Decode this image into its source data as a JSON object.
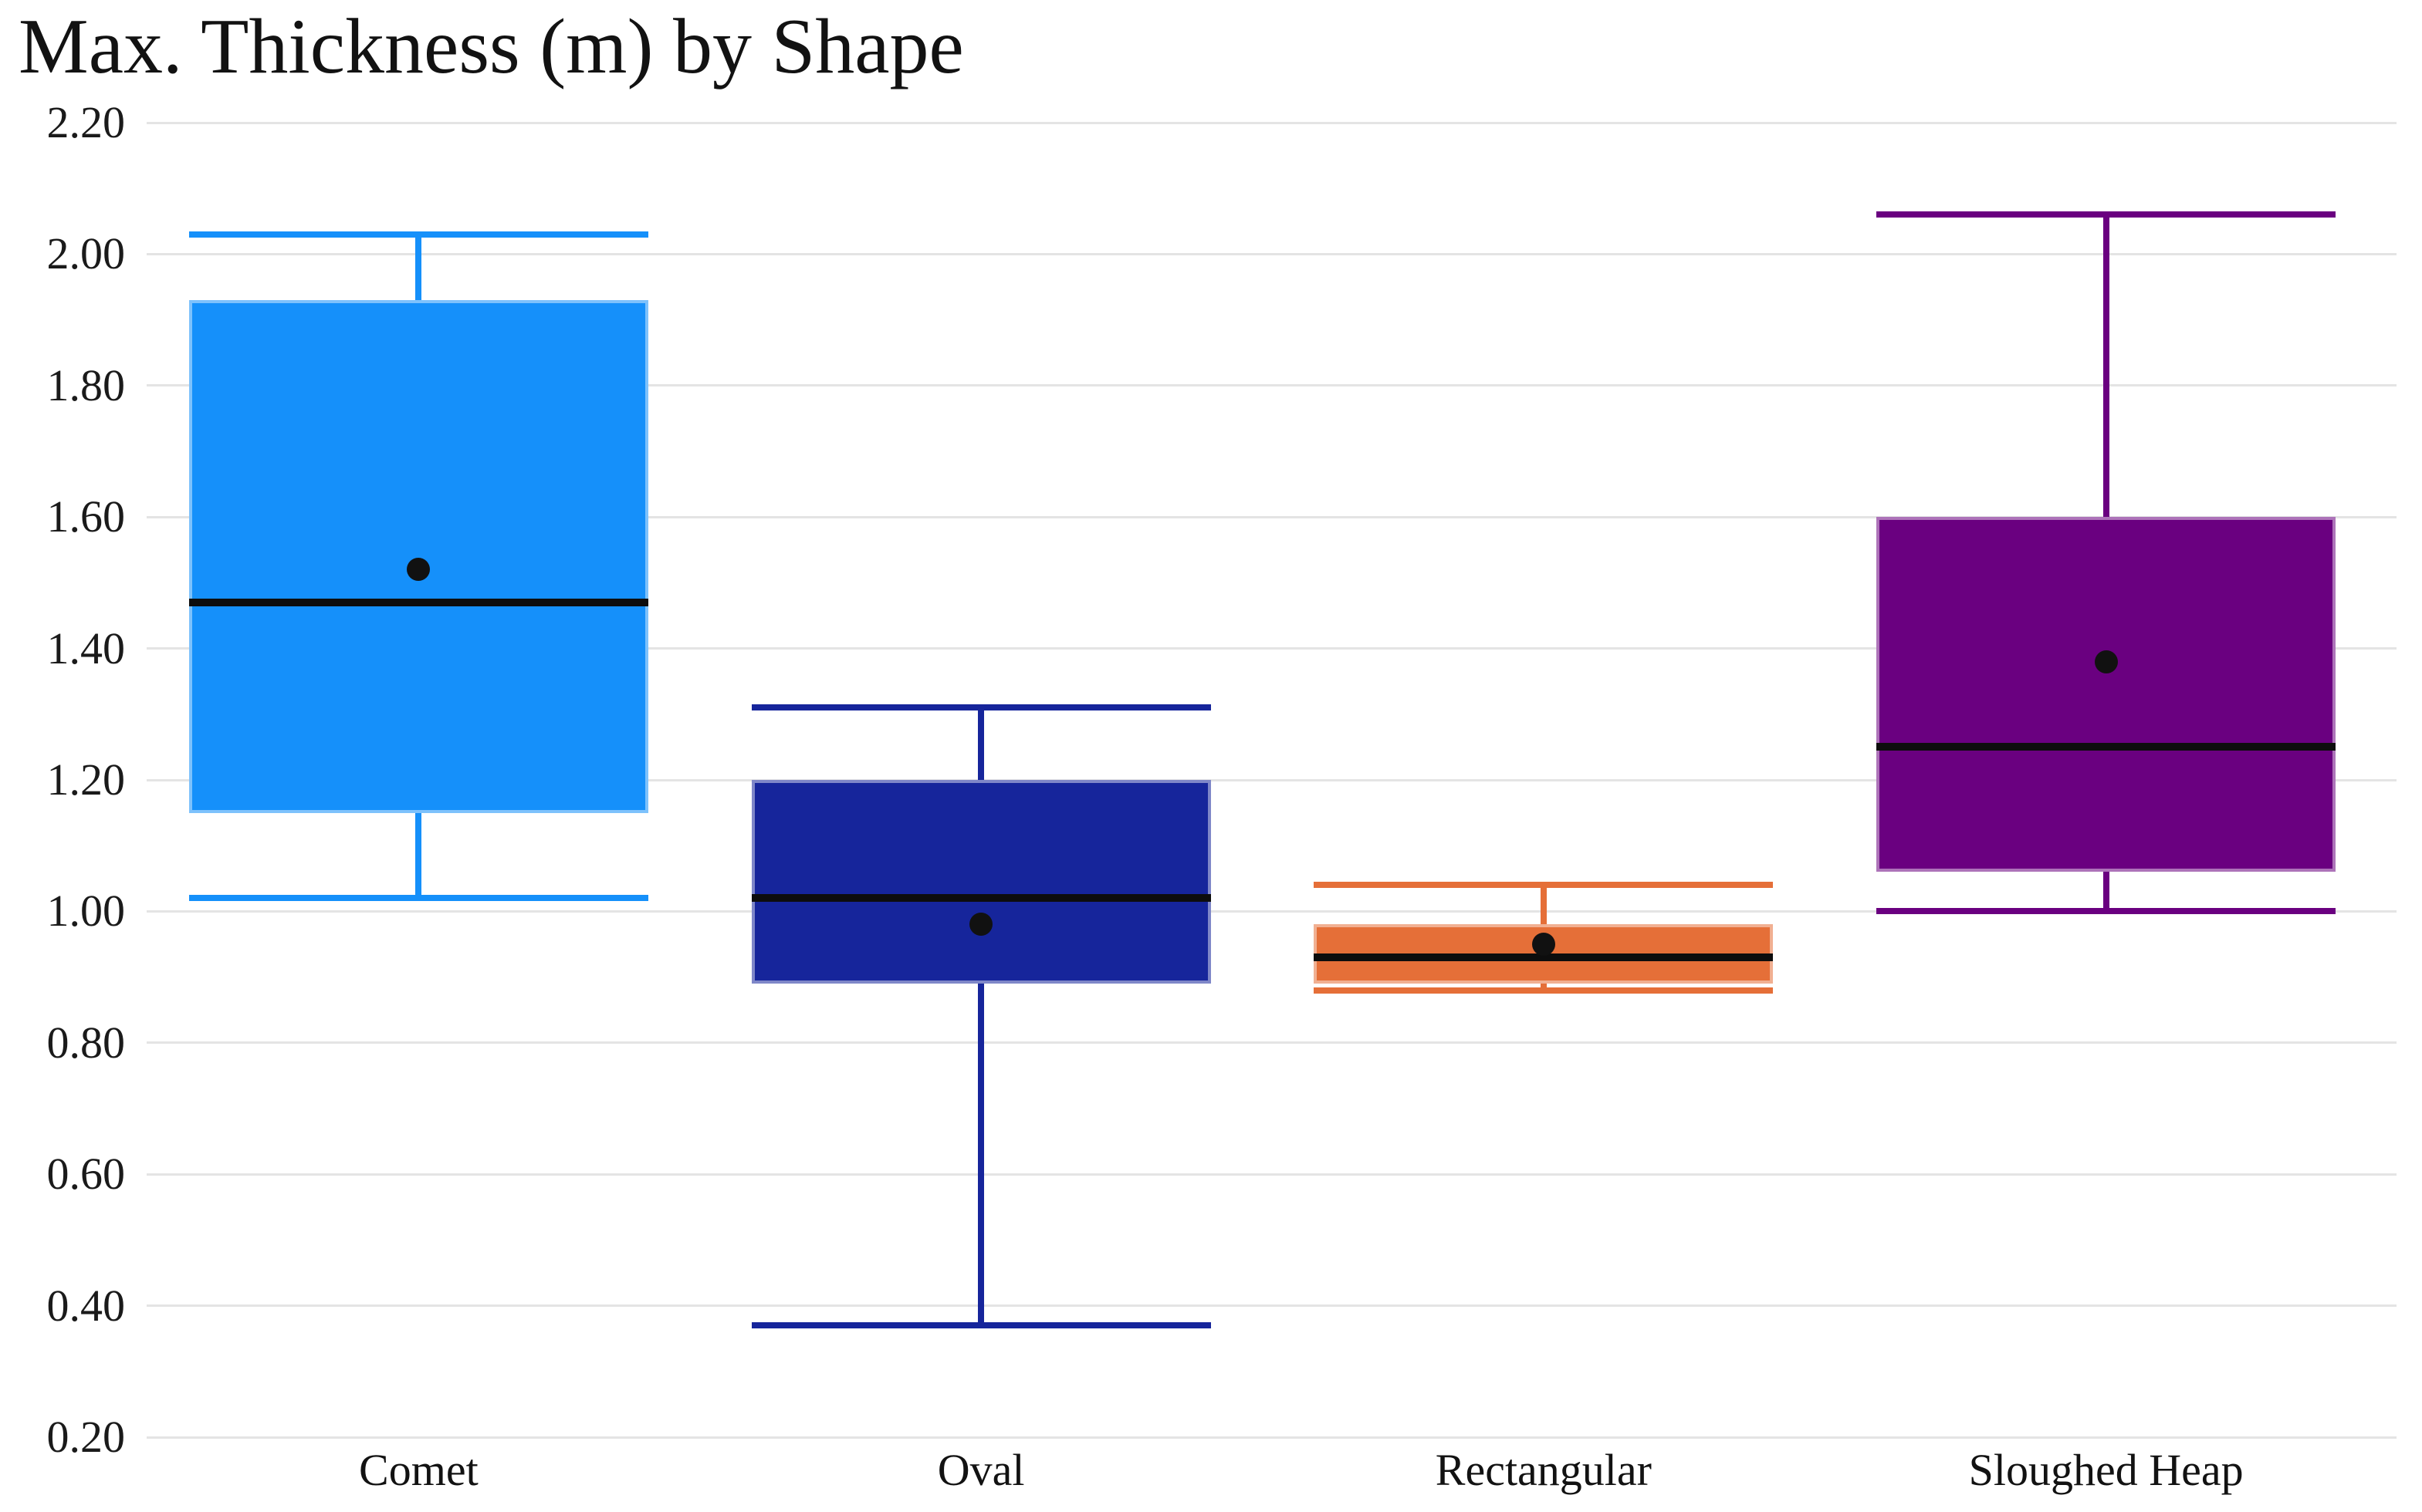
{
  "page": {
    "background": "#FFFFFF"
  },
  "chart_data": {
    "type": "box",
    "title": "Max. Thickness (m) by Shape",
    "xlabel": "",
    "ylabel": "",
    "categories": [
      "Comet",
      "Oval",
      "Rectangular",
      "Sloughed Heap"
    ],
    "series": [
      {
        "name": "Comet",
        "color": "#1590FA",
        "whisker_low": 1.02,
        "q1": 1.15,
        "median": 1.47,
        "mean": 1.52,
        "q3": 1.93,
        "whisker_high": 2.03
      },
      {
        "name": "Oval",
        "color": "#16259B",
        "whisker_low": 0.37,
        "q1": 0.89,
        "median": 1.02,
        "mean": 0.98,
        "q3": 1.2,
        "whisker_high": 1.31
      },
      {
        "name": "Rectangular",
        "color": "#E56F38",
        "whisker_low": 0.88,
        "q1": 0.89,
        "median": 0.93,
        "mean": 0.95,
        "q3": 0.98,
        "whisker_high": 1.04
      },
      {
        "name": "Sloughed Heap",
        "color": "#6A0080",
        "whisker_low": 1.0,
        "q1": 1.06,
        "median": 1.25,
        "mean": 1.38,
        "q3": 1.6,
        "whisker_high": 2.06
      }
    ],
    "ylim": [
      0.2,
      2.2
    ],
    "ytick_labels": [
      "2.20",
      "2.00",
      "1.80",
      "1.60",
      "1.40",
      "1.20",
      "1.00",
      "0.80",
      "0.60",
      "0.40",
      "0.20"
    ],
    "grid": true,
    "legend_position": "none",
    "mean_marker": "dot",
    "colors": {
      "gridline": "#E4E4E4",
      "tick_text": "#1a1a1a",
      "category_text": "#121212",
      "median_line": "#0d0d0d",
      "mean_dot": "#111111",
      "title_text": "#121212"
    }
  }
}
